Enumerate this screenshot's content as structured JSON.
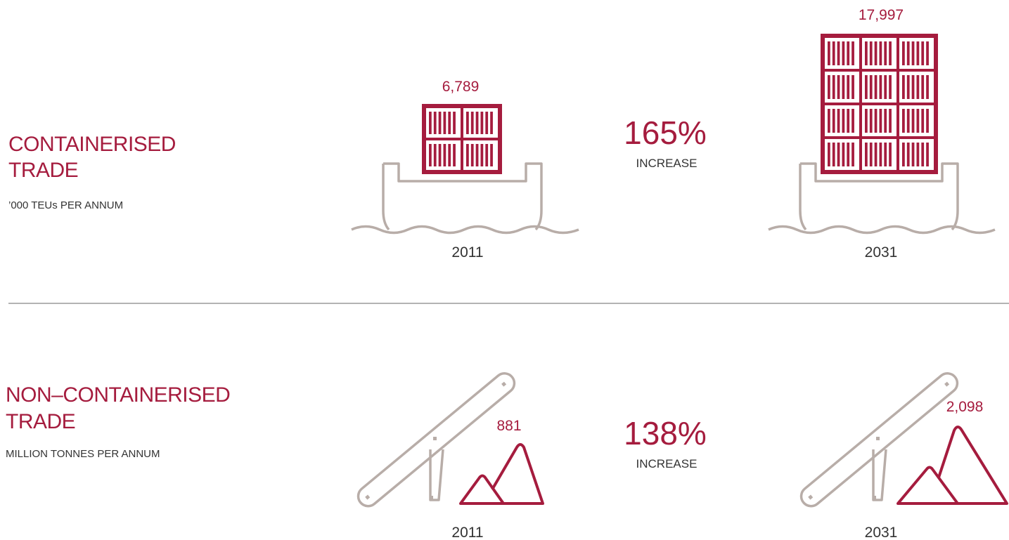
{
  "sections": [
    {
      "title_lines": [
        "CONTAINERISED",
        "TRADE"
      ],
      "subtitle": "’000 TEUs PER ANNUM",
      "change": "165%",
      "change_label": "INCREASE",
      "items": [
        {
          "value": "6,789",
          "year": "2011"
        },
        {
          "value": "17,997",
          "year": "2031"
        }
      ]
    },
    {
      "title_lines": [
        "NON–CONTAINERISED",
        "TRADE"
      ],
      "subtitle": "MILLION TONNES PER ANNUM",
      "change": "138%",
      "change_label": "INCREASE",
      "items": [
        {
          "value": "881",
          "year": "2011"
        },
        {
          "value": "2,098",
          "year": "2031"
        }
      ]
    }
  ]
}
